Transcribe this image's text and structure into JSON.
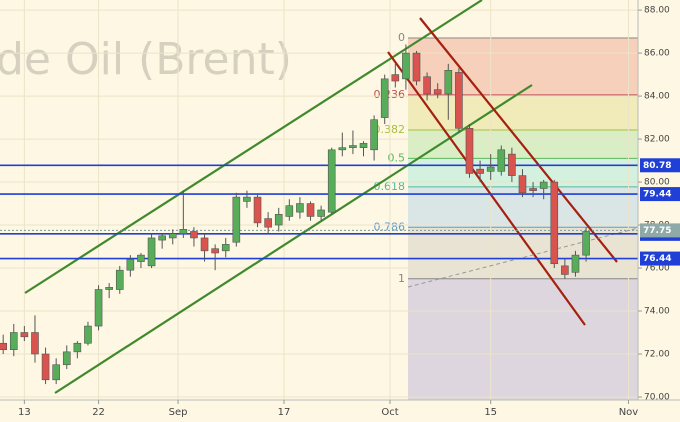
{
  "chart_data": {
    "type": "candlestick",
    "watermark": "de Oil (Brent)",
    "up_color": "#58ad5a",
    "down_color": "#d9534f",
    "x": [
      -2,
      -1,
      0,
      1,
      2,
      3,
      4,
      5,
      6,
      7,
      8,
      9,
      10,
      11,
      12,
      13,
      14,
      15,
      16,
      17,
      18,
      19,
      20,
      21,
      22,
      23,
      24,
      25,
      26,
      27,
      28,
      29,
      30,
      31,
      32,
      33,
      34,
      35,
      36,
      37,
      38,
      39,
      40,
      41,
      42,
      43,
      44,
      45,
      46,
      47,
      48,
      49,
      50,
      51,
      52,
      53
    ],
    "open": [
      72.5,
      72.2,
      73.0,
      73.0,
      72.0,
      70.8,
      71.5,
      72.1,
      72.5,
      73.3,
      75.0,
      75.0,
      75.9,
      76.3,
      76.1,
      77.3,
      77.4,
      77.6,
      77.7,
      77.4,
      76.9,
      76.8,
      77.2,
      79.1,
      79.3,
      78.3,
      78.0,
      78.4,
      78.6,
      79.0,
      78.4,
      78.6,
      81.5,
      81.6,
      81.6,
      81.5,
      83.0,
      85.0,
      84.8,
      86.0,
      84.9,
      84.3,
      84.1,
      85.1,
      82.5,
      80.6,
      80.5,
      80.5,
      81.3,
      80.3,
      79.7,
      79.7,
      80.0,
      76.1,
      75.8,
      76.6
    ],
    "high": [
      72.9,
      73.4,
      73.3,
      73.8,
      72.3,
      71.8,
      72.4,
      72.6,
      73.5,
      75.2,
      75.3,
      76.1,
      76.6,
      76.7,
      77.6,
      77.6,
      77.8,
      79.6,
      77.9,
      77.6,
      77.1,
      77.4,
      79.5,
      79.6,
      79.4,
      78.6,
      78.8,
      79.2,
      79.3,
      79.1,
      78.9,
      81.6,
      82.3,
      82.4,
      81.9,
      83.1,
      85.0,
      85.5,
      86.4,
      86.1,
      85.1,
      84.6,
      85.5,
      85.3,
      82.7,
      81.0,
      81.3,
      81.7,
      81.6,
      80.6,
      80.0,
      80.1,
      80.1,
      76.4,
      76.8,
      77.9
    ],
    "low": [
      72.0,
      71.9,
      72.6,
      71.6,
      70.6,
      70.6,
      71.3,
      71.8,
      72.4,
      73.1,
      74.6,
      74.8,
      75.6,
      76.0,
      76.0,
      76.9,
      77.1,
      77.4,
      77.0,
      76.3,
      75.9,
      76.5,
      77.0,
      78.8,
      77.9,
      77.6,
      77.7,
      78.2,
      78.3,
      78.2,
      78.2,
      78.5,
      81.2,
      81.3,
      81.2,
      81.0,
      82.7,
      84.4,
      84.3,
      84.5,
      83.8,
      83.9,
      82.9,
      82.3,
      80.2,
      80.0,
      80.1,
      80.3,
      80.0,
      79.3,
      79.3,
      79.2,
      76.0,
      75.5,
      75.6,
      76.3
    ],
    "close": [
      72.2,
      73.0,
      72.8,
      72.0,
      70.8,
      71.5,
      72.1,
      72.5,
      73.3,
      75.0,
      75.1,
      75.9,
      76.4,
      76.6,
      77.4,
      77.5,
      77.6,
      77.8,
      77.4,
      76.8,
      76.7,
      77.1,
      79.3,
      79.3,
      78.1,
      77.9,
      78.5,
      78.9,
      79.0,
      78.4,
      78.7,
      81.5,
      81.6,
      81.7,
      81.8,
      82.9,
      84.8,
      84.7,
      86.0,
      84.7,
      84.1,
      84.1,
      85.2,
      82.5,
      80.4,
      80.4,
      80.7,
      81.5,
      80.3,
      79.5,
      79.6,
      80.0,
      76.2,
      75.7,
      76.6,
      77.7
    ],
    "xlim": [
      -2.3,
      57.9
    ],
    "xticks": [
      {
        "value": 0,
        "label": "13"
      },
      {
        "value": 7,
        "label": "22"
      },
      {
        "value": 14.5,
        "label": "Sep"
      },
      {
        "value": 24.5,
        "label": "17"
      },
      {
        "value": 34.5,
        "label": "Oct"
      },
      {
        "value": 44,
        "label": "15"
      },
      {
        "value": 57,
        "label": "Nov"
      }
    ],
    "ylim": [
      69.86,
      88.47
    ],
    "yticks": [
      {
        "value": 70,
        "label": "70.00"
      },
      {
        "value": 72,
        "label": "72.00"
      },
      {
        "value": 74,
        "label": "74.00"
      },
      {
        "value": 76,
        "label": "76.00"
      },
      {
        "value": 78,
        "label": "78.00"
      },
      {
        "value": 80,
        "label": "80.00"
      },
      {
        "value": 82,
        "label": "82.00"
      },
      {
        "value": 84,
        "label": "84.00"
      },
      {
        "value": 86,
        "label": "86.00"
      },
      {
        "value": 88,
        "label": "88.00"
      }
    ],
    "grid": true,
    "horizontal_lines": [
      80.78,
      79.44,
      77.59,
      76.44
    ],
    "horizontal_line_color": "#1f3fd6",
    "last_price": 77.75,
    "fib": {
      "start": 86.7,
      "end": 75.5,
      "levels": [
        0,
        0.236,
        0.382,
        0.5,
        0.618,
        0.786,
        1
      ],
      "level_colors": [
        "#888888",
        "#c0504d",
        "#a8c040",
        "#5cb85c",
        "#4fb8a0",
        "#5b9bd5",
        "#888888"
      ],
      "band_colors": [
        "#f5c9b3",
        "#efe8b2",
        "#d4ecc0",
        "#cdeedd",
        "#d3e3e6",
        "#e5dfd0",
        "#d8d0dd"
      ]
    }
  }
}
